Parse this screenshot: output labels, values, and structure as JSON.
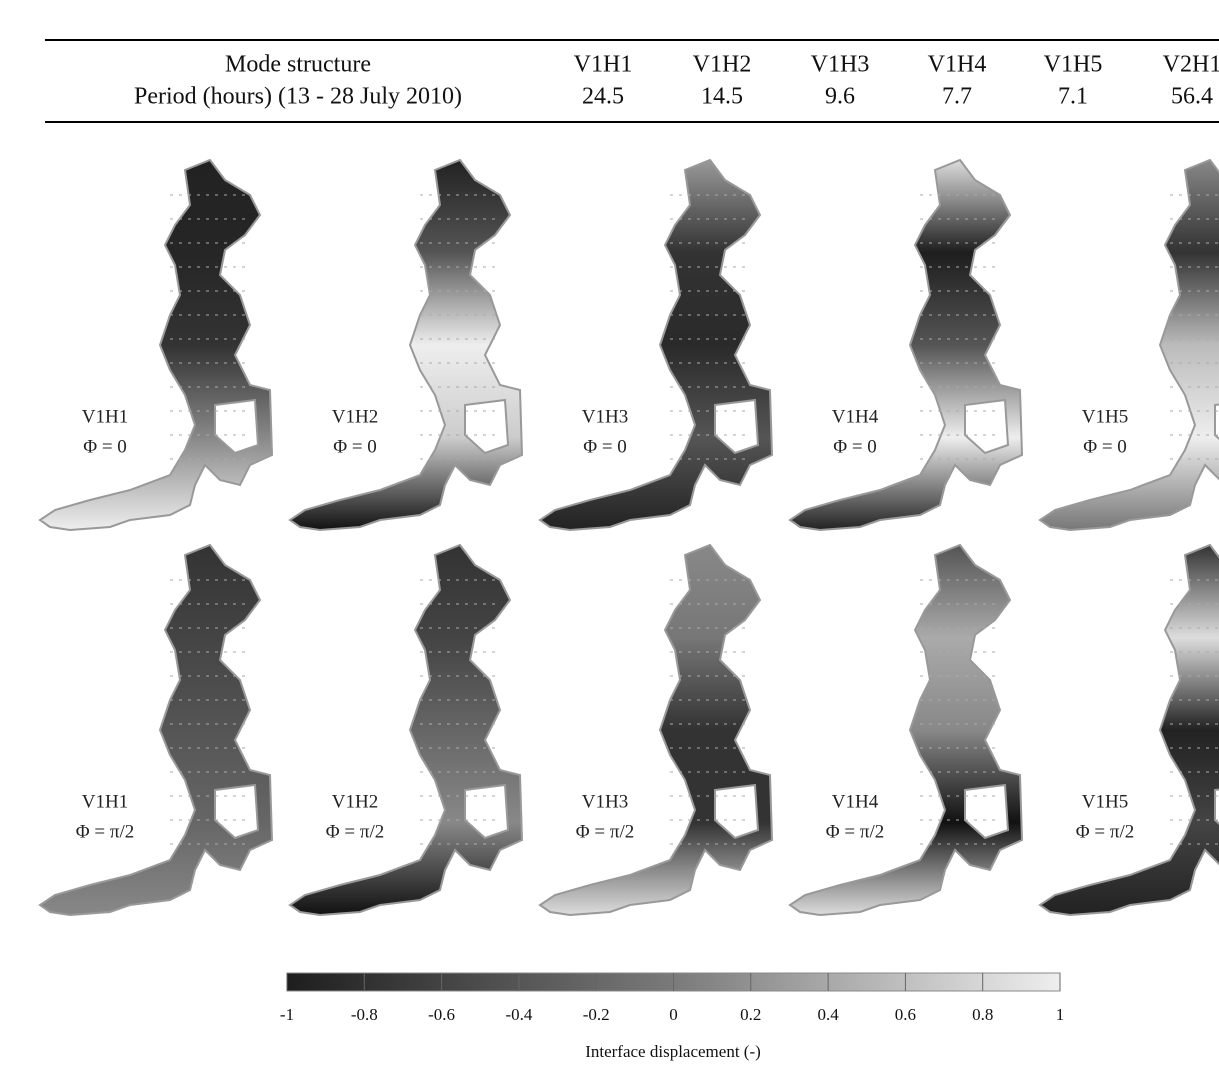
{
  "table": {
    "header": [
      "Mode structure",
      "V1H1",
      "V1H2",
      "V1H3",
      "V1H4",
      "V1H5",
      "V2H1"
    ],
    "rows": [
      [
        "Period (hours) (13 - 28 July 2010)",
        24.5,
        14.5,
        9.6,
        7.7,
        7.1,
        56.4
      ]
    ]
  },
  "panels": [
    {
      "mode": "V1H1",
      "phase": "Φ = 0"
    },
    {
      "mode": "V1H2",
      "phase": "Φ = 0"
    },
    {
      "mode": "V1H3",
      "phase": "Φ = 0"
    },
    {
      "mode": "V1H4",
      "phase": "Φ = 0"
    },
    {
      "mode": "V1H5",
      "phase": "Φ = 0"
    },
    {
      "mode": "V1H1",
      "phase": "Φ = π/2"
    },
    {
      "mode": "V1H2",
      "phase": "Φ = π/2"
    },
    {
      "mode": "V1H3",
      "phase": "Φ = π/2"
    },
    {
      "mode": "V1H4",
      "phase": "Φ = π/2"
    },
    {
      "mode": "V1H5",
      "phase": "Φ = π/2"
    }
  ],
  "colorbar": {
    "ticks": [
      -1,
      -0.8,
      -0.6,
      -0.4,
      -0.2,
      0,
      0.2,
      0.4,
      0.6,
      0.8,
      1
    ],
    "label": "Interface displacement (-)"
  }
}
